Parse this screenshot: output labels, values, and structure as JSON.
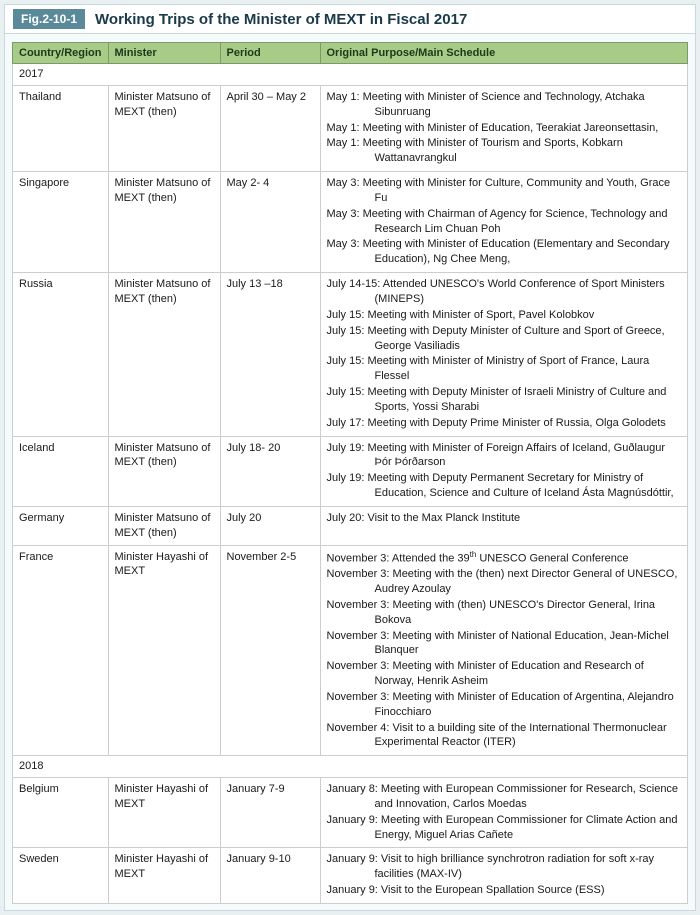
{
  "figure": {
    "number": "Fig.2-10-1",
    "title": "Working Trips of the Minister of MEXT in Fiscal 2017"
  },
  "columns": [
    "Country/Region",
    "Minister",
    "Period",
    "Original Purpose/Main Schedule"
  ],
  "sections": [
    {
      "year": "2017",
      "rows": [
        {
          "country": "Thailand",
          "minister": "Minister Matsuno of MEXT (then)",
          "period": "April 30 – May 2",
          "schedule": [
            "May 1: Meeting with Minister of Science and Technology, Atchaka Sibunruang",
            "May 1: Meeting with Minister of Education, Teerakiat Jareonsettasin,",
            "May 1: Meeting with Minister of Tourism and Sports, Kobkarn Wattanavrangkul"
          ]
        },
        {
          "country": "Singapore",
          "minister": "Minister Matsuno of MEXT (then)",
          "period": "May 2- 4",
          "schedule": [
            "May 3: Meeting with Minister for Culture, Community and Youth, Grace Fu",
            "May 3: Meeting with Chairman of Agency for Science, Technology and Research Lim Chuan Poh",
            "May 3: Meeting with Minister of Education (Elementary and Secondary Education), Ng Chee Meng,"
          ]
        },
        {
          "country": "Russia",
          "minister": "Minister Matsuno of MEXT (then)",
          "period": "July 13 –18",
          "schedule": [
            "July 14-15: Attended UNESCO's World Conference of Sport Ministers (MINEPS)",
            "July 15: Meeting with Minister of Sport, Pavel Kolobkov",
            "July 15: Meeting with Deputy Minister of Culture and Sport of Greece, George Vasiliadis",
            "July 15: Meeting with Minister of Ministry of Sport of France, Laura Flessel",
            "July 15: Meeting with Deputy Minister of Israeli Ministry of Culture and Sports, Yossi Sharabi",
            "July 17: Meeting with Deputy Prime Minister of Russia, Olga Golodets"
          ]
        },
        {
          "country": "Iceland",
          "minister": "Minister Matsuno of MEXT (then)",
          "period": "July 18- 20",
          "schedule": [
            "July 19: Meeting with Minister of Foreign Affairs of Iceland, Guðlaugur Þór Þórðarson",
            "July 19: Meeting with Deputy Permanent Secretary for Ministry of Education, Science and Culture of Iceland Ásta Magnúsdóttir,"
          ]
        },
        {
          "country": "Germany",
          "minister": "Minister Matsuno of MEXT (then)",
          "period": "July 20",
          "schedule": [
            "July 20: Visit to the Max Planck Institute"
          ]
        },
        {
          "country": "France",
          "minister": "Minister Hayashi of MEXT",
          "period": "November 2-5",
          "schedule_html": [
            "November 3: Attended the 39<sup>th</sup> UNESCO General Conference",
            "November 3: Meeting with the (then) next Director General of UNESCO, Audrey Azoulay",
            "November 3: Meeting with (then) UNESCO's Director General, Irina Bokova",
            "November 3: Meeting with Minister of National Education, Jean-Michel Blanquer",
            "November 3: Meeting with Minister of Education and Research of Norway, Henrik Asheim",
            "November 3: Meeting with Minister of Education of Argentina, Alejandro Finocchiaro",
            "November 4: Visit to a building site of the International Thermonuclear Experimental Reactor (ITER)"
          ]
        }
      ]
    },
    {
      "year": "2018",
      "rows": [
        {
          "country": "Belgium",
          "minister": "Minister Hayashi of MEXT",
          "period": "January 7-9",
          "schedule": [
            "January 8: Meeting with European Commissioner for Research, Science and Innovation, Carlos Moedas",
            "January 9: Meeting with European Commissioner for Climate Action and Energy, Miguel Arias Cañete"
          ]
        },
        {
          "country": "Sweden",
          "minister": "Minister Hayashi of MEXT",
          "period": "January 9-10",
          "schedule": [
            "January 9: Visit to high brilliance synchrotron radiation for soft x-ray facilities (MAX-IV)",
            "January 9: Visit to the European Spallation Source (ESS)"
          ]
        }
      ]
    }
  ],
  "colors": {
    "header_bg": "#a8cc88",
    "title_bg": "#5a8a9a",
    "page_bg": "#e8f0f2",
    "panel_bg": "#f5fafb"
  }
}
